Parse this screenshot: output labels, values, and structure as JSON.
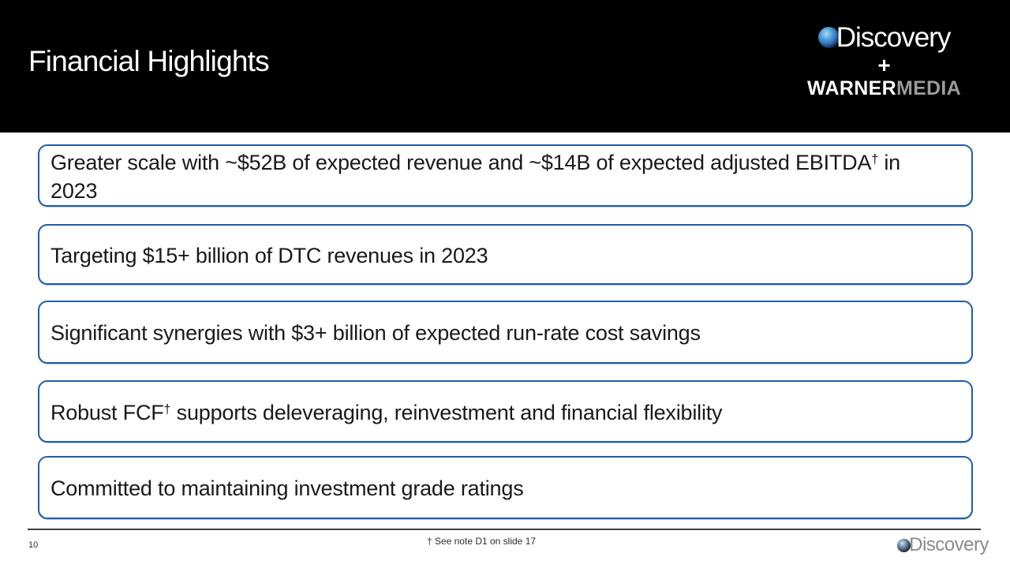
{
  "slide": {
    "title": "Financial Highlights",
    "page_number": "10",
    "footnote": "† See note D1 on slide 17"
  },
  "header_logo": {
    "discovery_text": "Discovery",
    "plus": "+",
    "warner_text": "WARNER",
    "media_text": "MEDIA",
    "globe_icon": "earth-globe"
  },
  "footer_logo": {
    "discovery_text": "Discovery",
    "globe_icon": "earth-globe"
  },
  "boxes": [
    {
      "pre": "Greater scale with ~$52B of expected revenue and ~$14B of expected adjusted EBITDA",
      "sup": "†",
      "post": " in 2023"
    },
    {
      "pre": "Targeting $15+ billion of DTC revenues in 2023",
      "sup": "",
      "post": ""
    },
    {
      "pre": "Significant synergies with $3+ billion of expected run-rate cost savings",
      "sup": "",
      "post": ""
    },
    {
      "pre": "Robust FCF",
      "sup": "†",
      "post": " supports deleveraging, reinvestment and financial flexibility"
    },
    {
      "pre": "Committed to maintaining investment grade ratings",
      "sup": "",
      "post": ""
    }
  ],
  "colors": {
    "header_bg": "#000000",
    "box_border": "#1f5cad",
    "media_gray": "#9b9b9b",
    "footer_logo_gray": "#8a8a8a"
  }
}
